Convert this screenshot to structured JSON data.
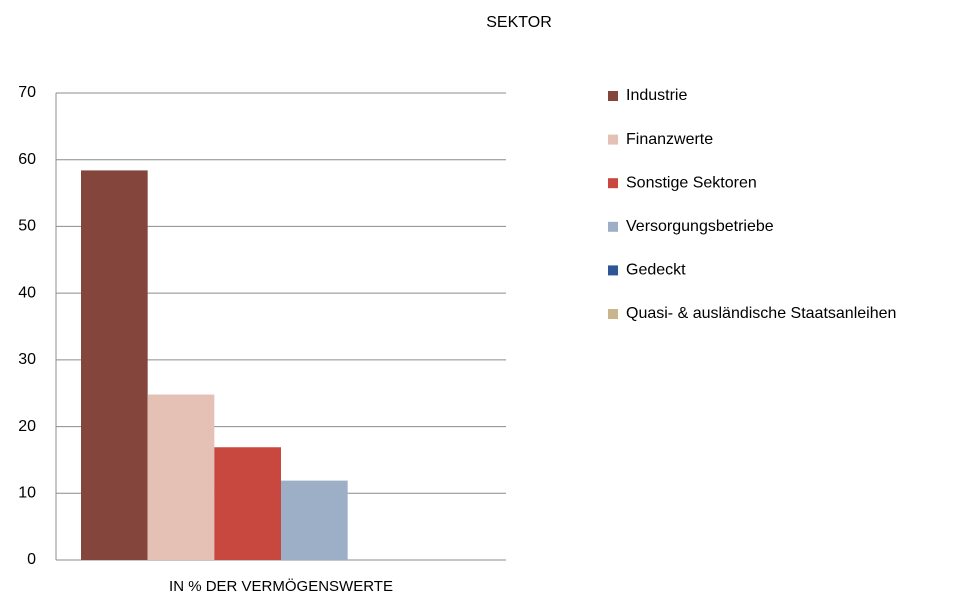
{
  "chart_data": {
    "type": "bar",
    "title": "SEKTOR",
    "categories": [
      "IN % DER VERMÖGENSWERTE"
    ],
    "series": [
      {
        "name": "Industrie",
        "color": "#84463c",
        "values": [
          58.4
        ]
      },
      {
        "name": "Finanzwerte",
        "color": "#e4c1b4",
        "values": [
          24.8
        ]
      },
      {
        "name": "Sonstige Sektoren",
        "color": "#c8473f",
        "values": [
          16.9
        ]
      },
      {
        "name": "Versorgungsbetriebe",
        "color": "#9dafc6",
        "values": [
          11.9
        ]
      },
      {
        "name": "Gedeckt",
        "color": "#2e5596",
        "values": [
          0
        ]
      },
      {
        "name": "Quasi- & ausländische Staatsanleihen",
        "color": "#c9b68c",
        "values": [
          0
        ]
      }
    ],
    "ylim": [
      0,
      70
    ],
    "yticks": [
      0,
      10,
      20,
      30,
      40,
      50,
      60,
      70
    ],
    "grid": true,
    "legend": "right"
  }
}
